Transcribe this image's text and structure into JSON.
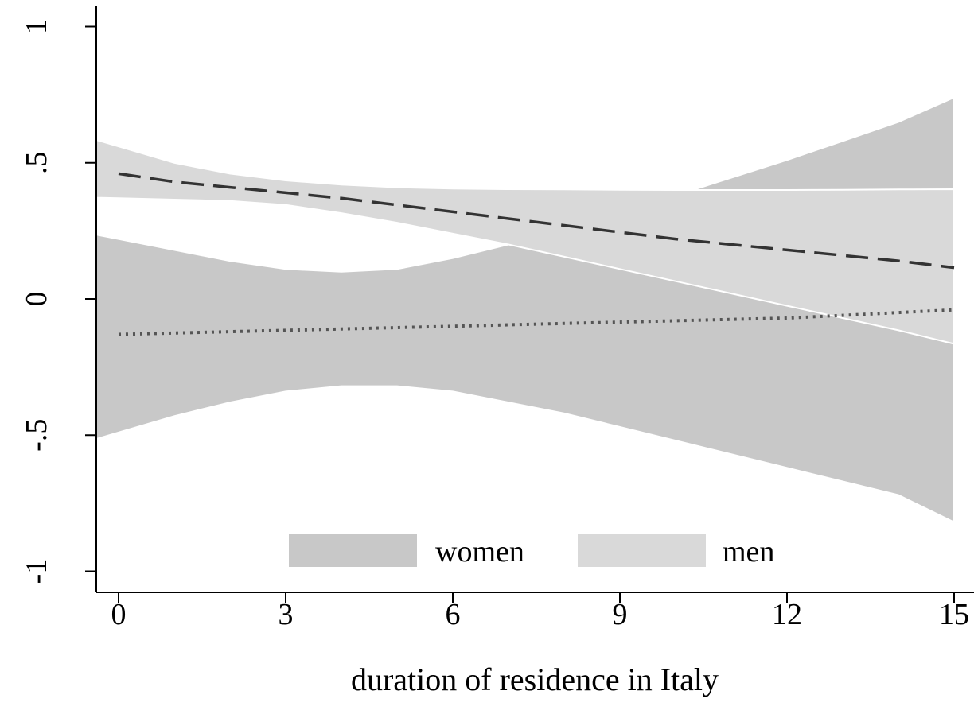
{
  "chart_data": {
    "type": "area",
    "title": "",
    "xlabel": "duration of residence in Italy",
    "ylabel": "",
    "xlim": [
      -0.4,
      15.4
    ],
    "ylim": [
      -1.08,
      1.08
    ],
    "x_ticks": [
      0,
      3,
      6,
      9,
      12,
      15
    ],
    "x_tick_labels": [
      "0",
      "3",
      "6",
      "9",
      "12",
      "15"
    ],
    "y_ticks": [
      -1,
      -0.5,
      0,
      0.5,
      1
    ],
    "y_tick_labels": [
      "-1",
      "-.5",
      "0",
      ".5",
      "1"
    ],
    "grid": false,
    "legend": {
      "placement": "bottom-center",
      "entries": [
        "women",
        "men"
      ]
    },
    "series": [
      {
        "name": "women",
        "band_color": "#c8c8c8",
        "line_style": "dotted",
        "line_color": "#555555",
        "x": [
          0,
          1,
          2,
          3,
          4,
          5,
          6,
          7,
          8,
          9,
          10,
          11,
          12,
          13,
          14,
          15
        ],
        "estimate": [
          -0.13,
          -0.125,
          -0.12,
          -0.115,
          -0.11,
          -0.105,
          -0.1,
          -0.095,
          -0.09,
          -0.085,
          -0.08,
          -0.075,
          -0.07,
          -0.06,
          -0.05,
          -0.04
        ],
        "upper": [
          0.22,
          0.18,
          0.14,
          0.11,
          0.1,
          0.11,
          0.15,
          0.2,
          0.26,
          0.32,
          0.38,
          0.445,
          0.51,
          0.58,
          0.65,
          0.74
        ],
        "lower": [
          -0.49,
          -0.43,
          -0.38,
          -0.34,
          -0.32,
          -0.32,
          -0.34,
          -0.38,
          -0.42,
          -0.47,
          -0.52,
          -0.57,
          -0.62,
          -0.67,
          -0.72,
          -0.82
        ]
      },
      {
        "name": "men",
        "band_color": "#d9d9d9",
        "line_style": "dashed",
        "line_color": "#333333",
        "x": [
          0,
          1,
          2,
          3,
          4,
          5,
          6,
          7,
          8,
          9,
          10,
          11,
          12,
          13,
          14,
          15
        ],
        "estimate": [
          0.46,
          0.43,
          0.41,
          0.39,
          0.37,
          0.345,
          0.32,
          0.295,
          0.27,
          0.245,
          0.22,
          0.2,
          0.18,
          0.16,
          0.14,
          0.115
        ],
        "upper": [
          0.56,
          0.5,
          0.46,
          0.435,
          0.42,
          0.41,
          0.405,
          0.403,
          0.402,
          0.401,
          0.4,
          0.4,
          0.4,
          0.401,
          0.402,
          0.403
        ],
        "lower": [
          0.37,
          0.365,
          0.36,
          0.345,
          0.315,
          0.28,
          0.24,
          0.2,
          0.155,
          0.11,
          0.065,
          0.02,
          -0.025,
          -0.07,
          -0.115,
          -0.165
        ]
      }
    ]
  }
}
